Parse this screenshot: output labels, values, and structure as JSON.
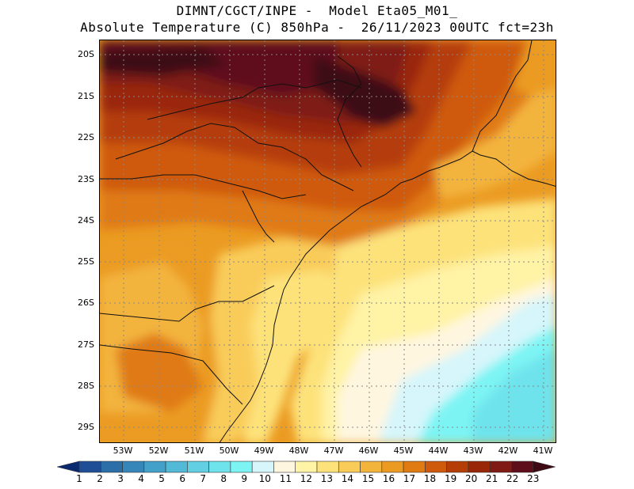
{
  "title": {
    "line1": "DIMNT/CGCT/INPE -  Model Eta05_M01_",
    "line2": "Absolute Temperature (C) 850hPa -  26/11/2023 00UTC fct=23h"
  },
  "axes": {
    "lat_labels": [
      "20S",
      "21S",
      "22S",
      "23S",
      "24S",
      "25S",
      "26S",
      "27S",
      "28S",
      "29S"
    ],
    "lon_labels": [
      "53W",
      "52W",
      "51W",
      "50W",
      "49W",
      "48W",
      "47W",
      "46W",
      "45W",
      "44W",
      "43W",
      "42W",
      "41W"
    ]
  },
  "colorbar": {
    "labels": [
      "1",
      "2",
      "3",
      "4",
      "5",
      "6",
      "7",
      "8",
      "9",
      "10",
      "11",
      "12",
      "13",
      "14",
      "15",
      "16",
      "17",
      "18",
      "19",
      "20",
      "21",
      "22",
      "23"
    ],
    "colors": [
      "#0a2a70",
      "#1f4e96",
      "#2c6fa8",
      "#3786ba",
      "#43a0c8",
      "#52b9d6",
      "#62d0e2",
      "#6ee3ec",
      "#7df4f4",
      "#d6f6fb",
      "#fff6e0",
      "#fff3a6",
      "#fde27a",
      "#f9cc5a",
      "#f3b43c",
      "#eb9b22",
      "#e07a12",
      "#cf5a0c",
      "#b53e08",
      "#9a2608",
      "#7f1a14",
      "#5e0e1a",
      "#3e0a14"
    ]
  },
  "chart_data": {
    "type": "map-contour",
    "variable": "Absolute Temperature (C) 850hPa",
    "model": "Eta05_M01_",
    "run": "26/11/2023 00UTC",
    "forecast": "fct=23h",
    "lat_range": [
      "29.5S",
      "19.8S"
    ],
    "lon_range": [
      "53.6W",
      "40.6W"
    ],
    "contour_levels": [
      1,
      2,
      3,
      4,
      5,
      6,
      7,
      8,
      9,
      10,
      11,
      12,
      13,
      14,
      15,
      16,
      17,
      18,
      19,
      20,
      21,
      22,
      23
    ],
    "regions": [
      {
        "area": "north-west interior (20S-22S, 53W-46W)",
        "value_C": "21-23+"
      },
      {
        "area": "central interior (22S-24S)",
        "value_C": "18-20"
      },
      {
        "area": "south-west interior (24S-28S, 53W-50W)",
        "value_C": "15-18"
      },
      {
        "area": "south-east Brazil coast (23S-24S, 47W-44W)",
        "value_C": "17-20"
      },
      {
        "area": "coastal Santa Catarina (26S-29S, 49W-48W)",
        "value_C": "12-14"
      },
      {
        "area": "Atlantic east of 46W, south of 24S",
        "value_C": "10-13"
      },
      {
        "area": "south-east Atlantic (27S-29.5S, 45W-41W)",
        "value_C": "9"
      }
    ]
  }
}
